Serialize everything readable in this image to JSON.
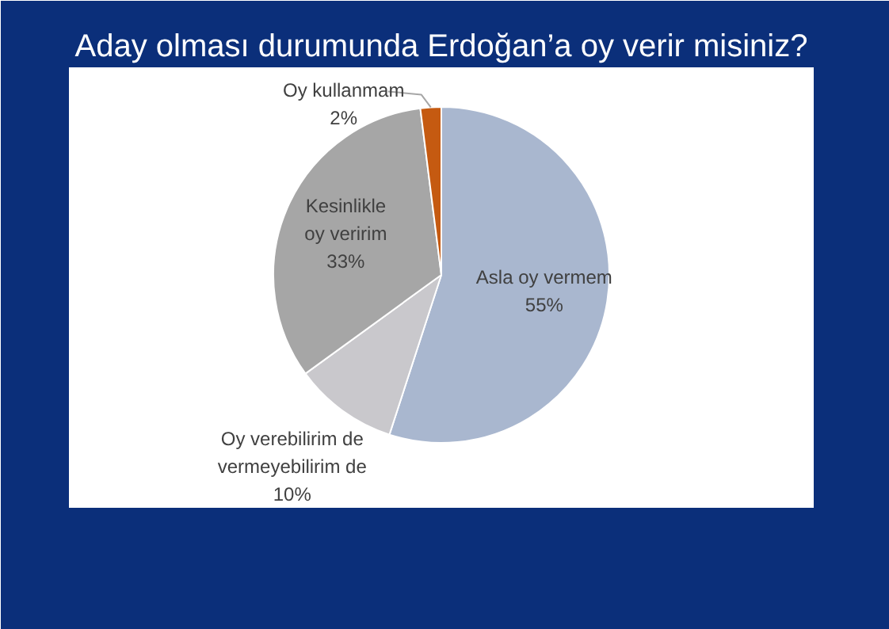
{
  "chart_data": {
    "type": "pie",
    "title": "Aday olması durumunda Erdoğan’a oy verir misiniz?",
    "categories": [
      "Asla oy vermem",
      "Oy verebilirim de\nvermeyebilirim de",
      "Kesinlikle\noy veririm",
      "Oy kullanmam"
    ],
    "values": [
      55,
      10,
      33,
      2
    ],
    "colors": [
      "#a9b7cf",
      "#c9c8cc",
      "#a6a6a6",
      "#c55a11"
    ],
    "value_labels": [
      "55%",
      "10%",
      "33%",
      "2%"
    ]
  }
}
